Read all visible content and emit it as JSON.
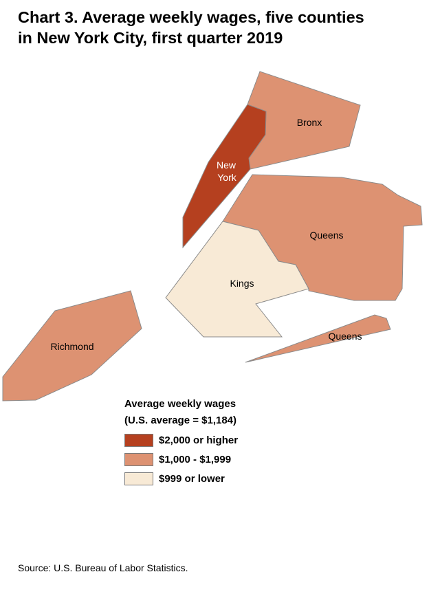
{
  "title_line1": "Chart 3. Average weekly wages, five counties",
  "title_line2": "in New York City, first quarter 2019",
  "colors": {
    "high": "#b5401f",
    "mid": "#dd9272",
    "low": "#f8ead6",
    "border": "#8b8b8b"
  },
  "counties": {
    "new_york": {
      "line1": "New",
      "line2": "York",
      "range": "$2,000 or higher"
    },
    "bronx": {
      "label": "Bronx",
      "range": "$1,000 - $1,999"
    },
    "queens": {
      "label": "Queens",
      "range": "$1,000 - $1,999"
    },
    "queens_rockaway": {
      "label": "Queens",
      "range": "$1,000 - $1,999"
    },
    "kings": {
      "label": "Kings",
      "range": "$999 or lower"
    },
    "richmond": {
      "label": "Richmond",
      "range": "$1,000 - $1,999"
    }
  },
  "legend": {
    "title_line1": "Average weekly wages",
    "title_line2": "(U.S. average = $1,184)",
    "items": [
      {
        "label": "$2,000 or higher",
        "color": "#b5401f"
      },
      {
        "label": "$1,000 - $1,999",
        "color": "#dd9272"
      },
      {
        "label": "$999 or lower",
        "color": "#f8ead6"
      }
    ]
  },
  "source": "Source: U.S. Bureau of Labor Statistics."
}
